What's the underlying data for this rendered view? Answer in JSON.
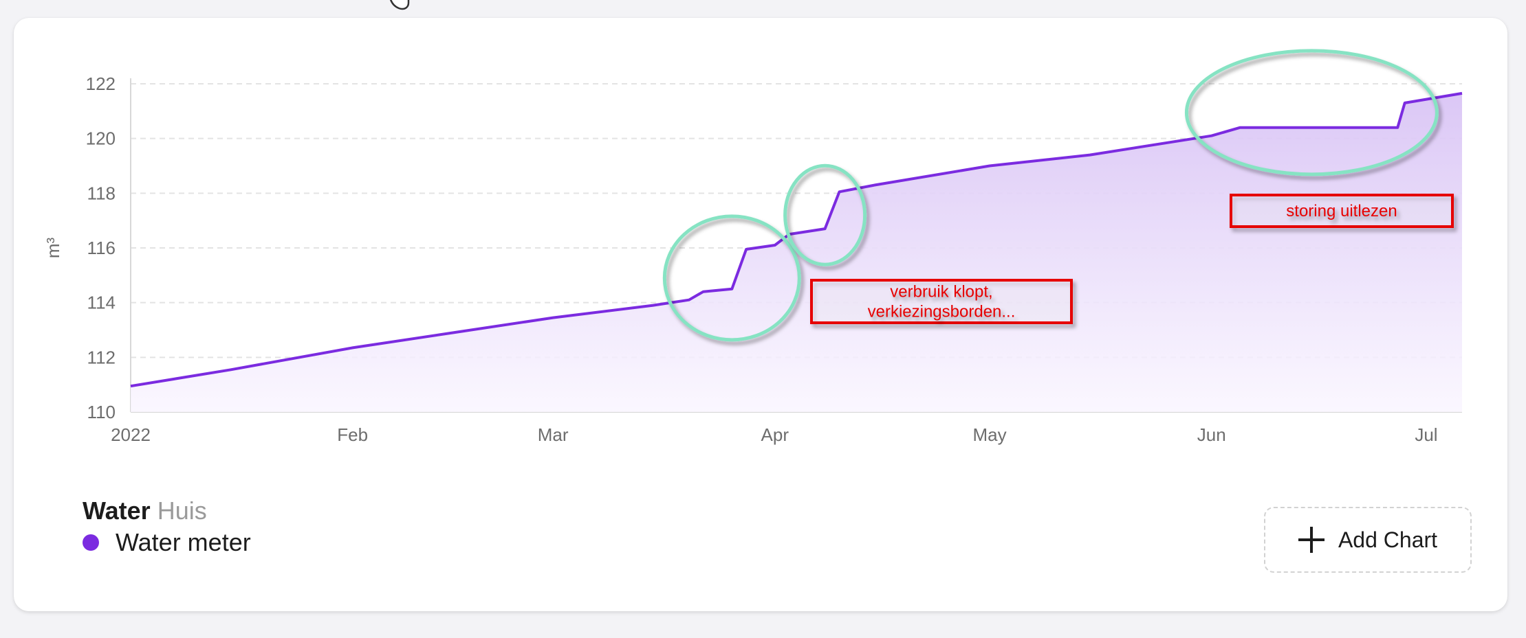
{
  "card": {
    "title": "Water",
    "subtitle": "Huis",
    "add_chart_label": "Add Chart"
  },
  "colors": {
    "series": "#7b2be0",
    "area_top": "#d9c4f5",
    "area_bottom": "#faf6ff",
    "grid": "#e3e3e3",
    "circle": "#86e3c3",
    "annotation": "#e60000",
    "axis_text": "#6d6d6d"
  },
  "chart_data": {
    "type": "area",
    "ylabel": "m³",
    "xlabel": "",
    "ylim": [
      110,
      122
    ],
    "yticks": [
      110,
      112,
      114,
      116,
      118,
      120,
      122
    ],
    "xlim": [
      "2022-01-01",
      "2022-07-06"
    ],
    "xticks": [
      {
        "date": "2022-01-01",
        "label": "2022"
      },
      {
        "date": "2022-02-01",
        "label": "Feb"
      },
      {
        "date": "2022-03-01",
        "label": "Mar"
      },
      {
        "date": "2022-04-01",
        "label": "Apr"
      },
      {
        "date": "2022-05-01",
        "label": "May"
      },
      {
        "date": "2022-06-01",
        "label": "Jun"
      },
      {
        "date": "2022-07-01",
        "label": "Jul"
      }
    ],
    "grid": true,
    "legend_position": "bottom-left",
    "series": [
      {
        "name": "Water meter",
        "x": [
          "2022-01-01",
          "2022-01-15",
          "2022-02-01",
          "2022-02-15",
          "2022-03-01",
          "2022-03-15",
          "2022-03-20",
          "2022-03-22",
          "2022-03-26",
          "2022-03-28",
          "2022-04-01",
          "2022-04-03",
          "2022-04-08",
          "2022-04-10",
          "2022-04-15",
          "2022-05-01",
          "2022-05-15",
          "2022-06-01",
          "2022-06-05",
          "2022-06-27",
          "2022-06-28",
          "2022-07-06"
        ],
        "y": [
          110.95,
          111.55,
          112.35,
          112.9,
          113.45,
          113.9,
          114.1,
          114.4,
          114.5,
          115.95,
          116.1,
          116.5,
          116.7,
          118.05,
          118.3,
          119.0,
          119.4,
          120.1,
          120.4,
          120.4,
          121.3,
          121.65
        ]
      }
    ],
    "annotations": [
      {
        "text": "verbruik klopt,\nverkiezingsborden..."
      },
      {
        "text": "storing uitlezen"
      }
    ]
  }
}
